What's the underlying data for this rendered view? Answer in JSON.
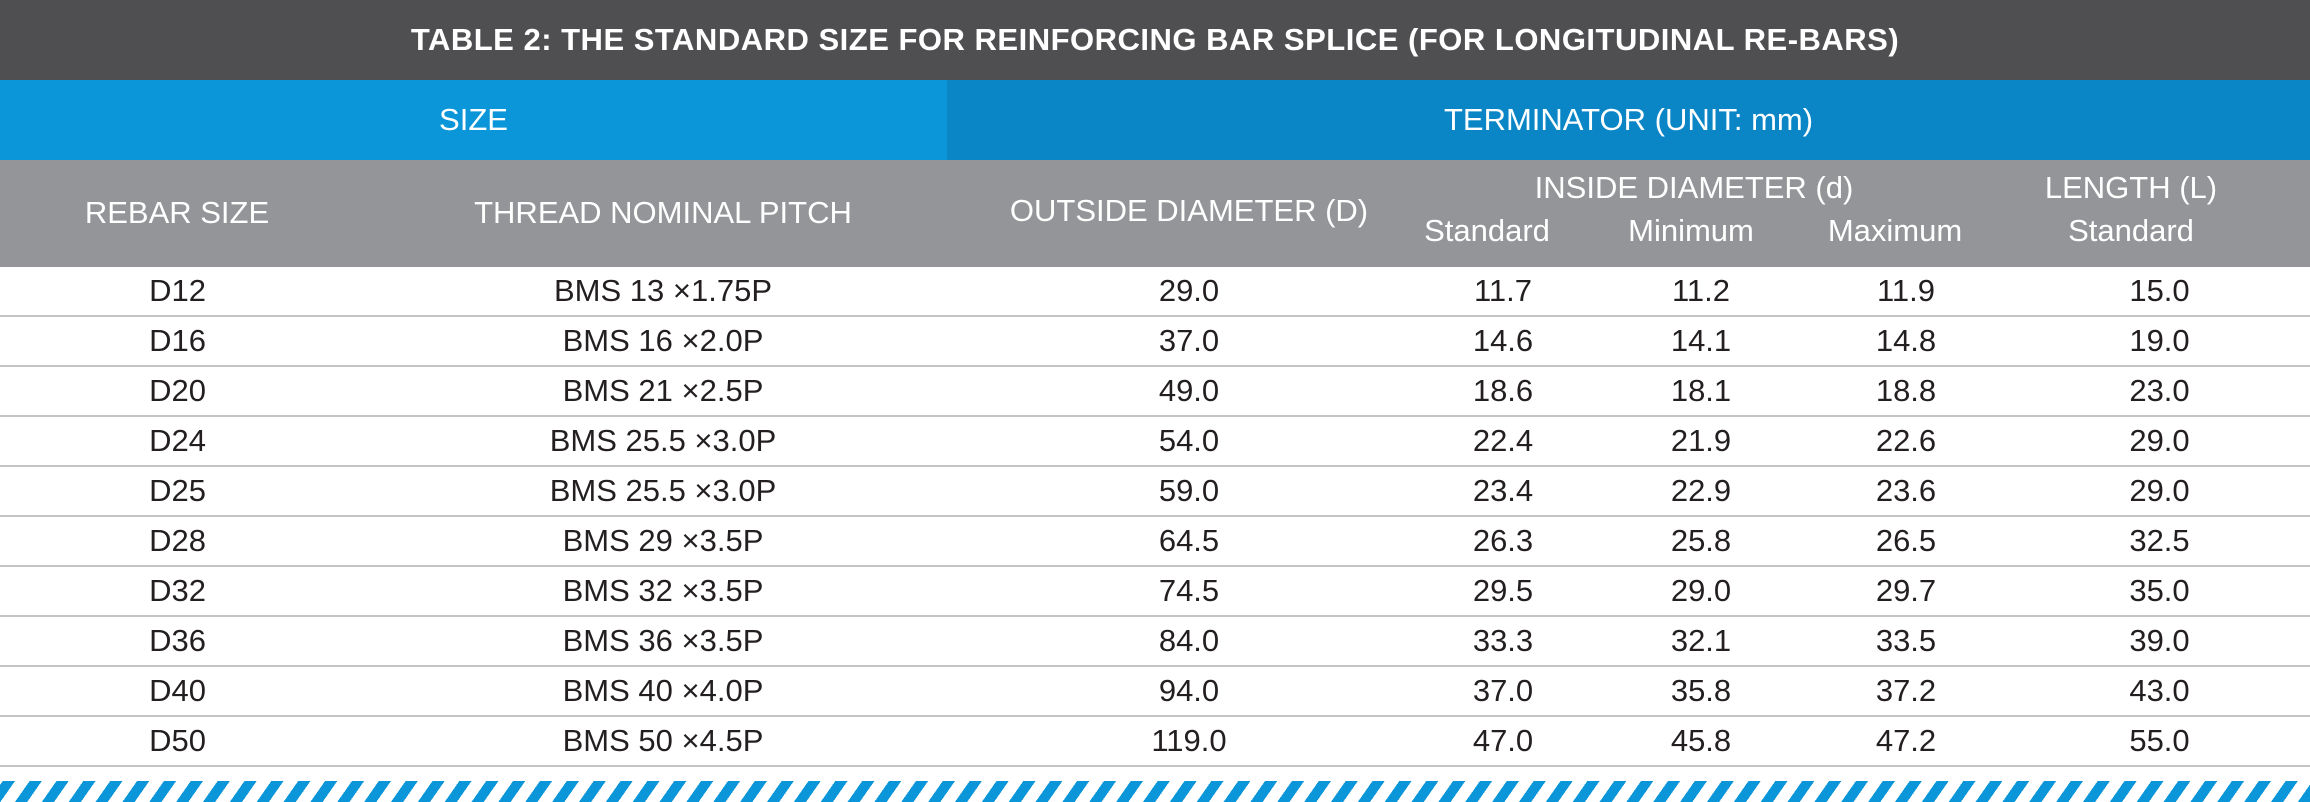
{
  "title": "TABLE 2: THE STANDARD SIZE FOR REINFORCING BAR SPLICE (FOR LONGITUDINAL RE-BARS)",
  "groups": {
    "size": "SIZE",
    "terminator": "TERMINATOR  (UNIT: mm)"
  },
  "headers": {
    "rebar_size": "REBAR SIZE",
    "thread_pitch": "THREAD NOMINAL PITCH",
    "outside_diameter": "OUTSIDE DIAMETER (D)",
    "inside_diameter": "INSIDE DIAMETER (d)",
    "inside_standard": "Standard",
    "inside_minimum": "Minimum",
    "inside_maximum": "Maximum",
    "length": "LENGTH (L)",
    "length_standard": "Standard"
  },
  "rows": [
    [
      "D12",
      "BMS 13 ×1.75P",
      "29.0",
      "11.7",
      "11.2",
      "11.9",
      "15.0"
    ],
    [
      "D16",
      "BMS 16 ×2.0P",
      "37.0",
      "14.6",
      "14.1",
      "14.8",
      "19.0"
    ],
    [
      "D20",
      "BMS 21 ×2.5P",
      "49.0",
      "18.6",
      "18.1",
      "18.8",
      "23.0"
    ],
    [
      "D24",
      "BMS 25.5 ×3.0P",
      "54.0",
      "22.4",
      "21.9",
      "22.6",
      "29.0"
    ],
    [
      "D25",
      "BMS 25.5 ×3.0P",
      "59.0",
      "23.4",
      "22.9",
      "23.6",
      "29.0"
    ],
    [
      "D28",
      "BMS 29 ×3.5P",
      "64.5",
      "26.3",
      "25.8",
      "26.5",
      "32.5"
    ],
    [
      "D32",
      "BMS 32 ×3.5P",
      "74.5",
      "29.5",
      "29.0",
      "29.7",
      "35.0"
    ],
    [
      "D36",
      "BMS 36 ×3.5P",
      "84.0",
      "33.3",
      "32.1",
      "33.5",
      "39.0"
    ],
    [
      "D40",
      "BMS 40 ×4.0P",
      "94.0",
      "37.0",
      "35.8",
      "37.2",
      "43.0"
    ],
    [
      "D50",
      "BMS 50 ×4.5P",
      "119.0",
      "47.0",
      "45.8",
      "47.2",
      "55.0"
    ]
  ],
  "colors": {
    "title_bg": "#4f4f51",
    "size_bg": "#0b96d9",
    "terminator_bg": "#0a86c7",
    "header_bg": "#939598",
    "stripe": "#0b96d9"
  }
}
